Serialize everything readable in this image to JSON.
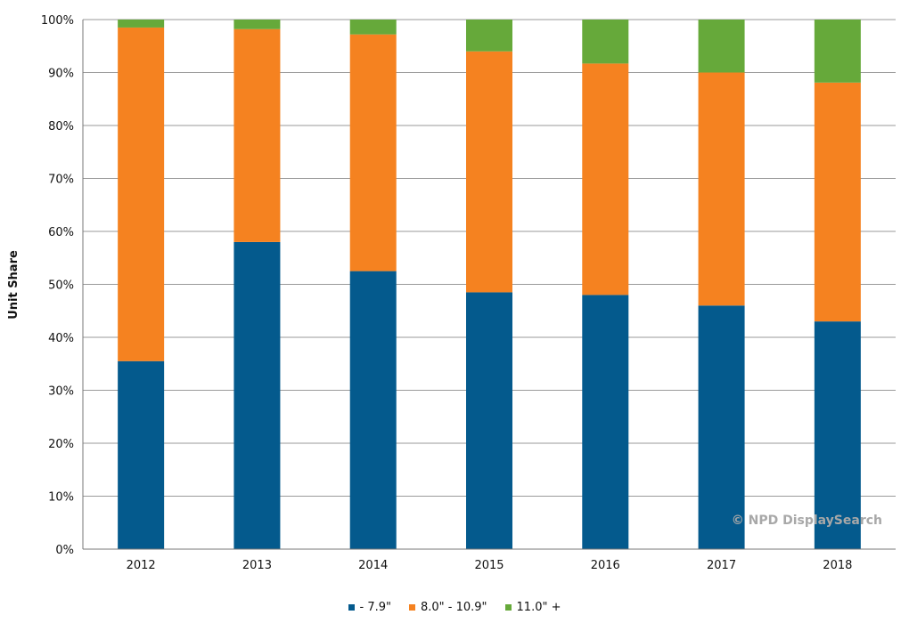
{
  "chart_data": {
    "type": "bar",
    "stacked": true,
    "categories": [
      "2012",
      "2013",
      "2014",
      "2015",
      "2016",
      "2017",
      "2018"
    ],
    "series": [
      {
        "name": "- 7.9\"",
        "color": "#045a8d",
        "values": [
          35.5,
          58,
          52.5,
          48.5,
          48,
          46,
          43
        ]
      },
      {
        "name": "8.0\" - 10.9\"",
        "color": "#f58220",
        "values": [
          63,
          40.2,
          44.7,
          45.5,
          43.7,
          44,
          45.1
        ]
      },
      {
        "name": "11.0\" +",
        "color": "#66a93a",
        "values": [
          1.5,
          1.8,
          2.8,
          6,
          8.3,
          10,
          11.9
        ]
      }
    ],
    "ylabel": "Unit Share",
    "xlabel": "",
    "ylim": [
      0,
      100
    ],
    "yticks": [
      "0%",
      "10%",
      "20%",
      "30%",
      "40%",
      "50%",
      "60%",
      "70%",
      "80%",
      "90%",
      "100%"
    ],
    "grid": true,
    "legend_position": "bottom",
    "annotation": "© NPD DisplaySearch"
  }
}
